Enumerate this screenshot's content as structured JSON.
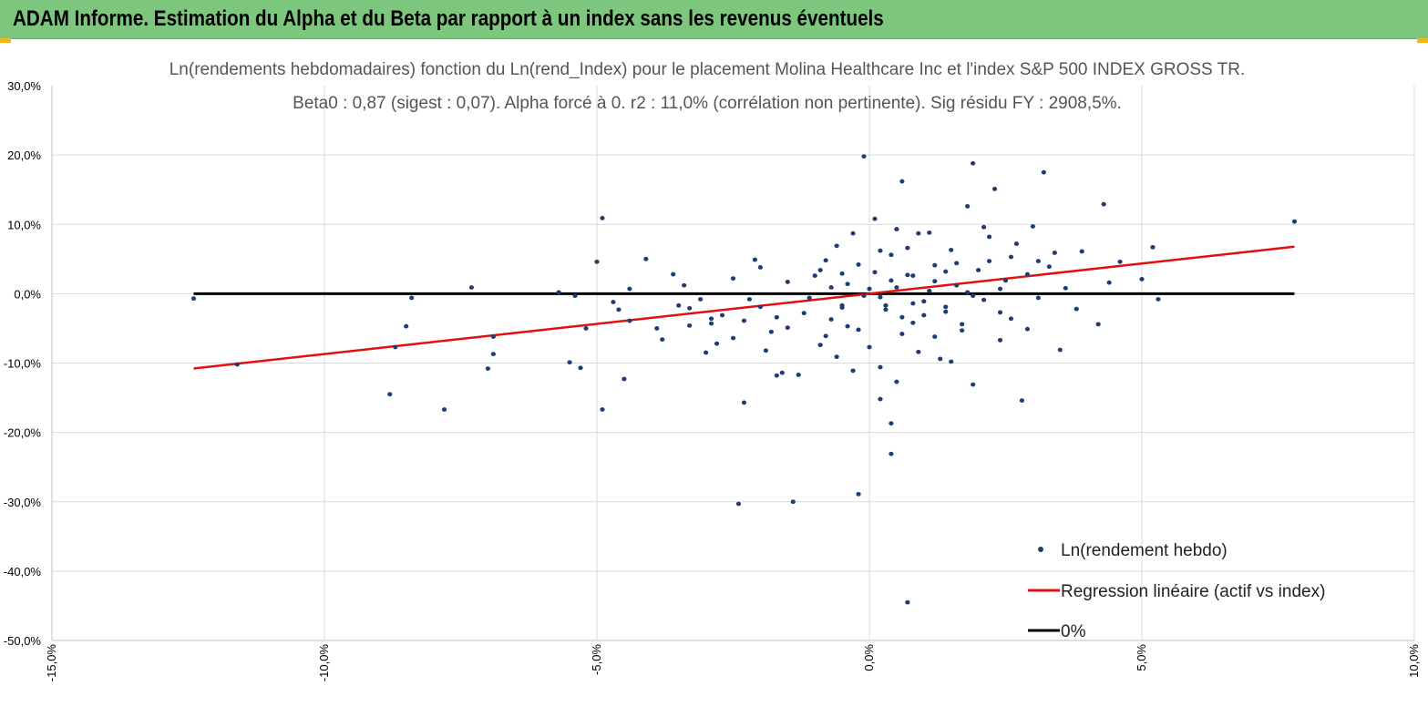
{
  "banner": {
    "title": "ADAM Informe. Estimation du Alpha et du Beta par rapport à un index sans les revenus éventuels"
  },
  "colors": {
    "banner": "#7dc67e",
    "accent": "#f3b51b",
    "points": "#1f3d73",
    "regression": "#e01010",
    "zero": "#000000"
  },
  "chart_data": {
    "type": "scatter",
    "title_lines": [
      "Ln(rendements hebdomadaires) fonction du Ln(rend_Index) pour le placement Molina Healthcare Inc et l'index S&P 500 INDEX GROSS TR.",
      "Beta0 : 0,87 (sigest : 0,07). Alpha forcé à 0. r2 : 11,0% (corrélation non pertinente). Sig résidu FY : 2908,5%."
    ],
    "xlabel": "",
    "ylabel": "",
    "xlim": [
      -15,
      10
    ],
    "ylim": [
      -50,
      30
    ],
    "x_ticks": [
      "-15,0%",
      "-10,0%",
      "-5,0%",
      "0,0%",
      "5,0%",
      "10,0%"
    ],
    "y_ticks": [
      "30,0%",
      "20,0%",
      "10,0%",
      "0,0%",
      "-10,0%",
      "-20,0%",
      "-30,0%",
      "-40,0%",
      "-50,0%"
    ],
    "grid": true,
    "legend_position": "bottom-right",
    "series": [
      {
        "name": "Ln(rendement hebdo)",
        "kind": "scatter",
        "points": [
          [
            -12.4,
            -0.7
          ],
          [
            -11.6,
            -10.2
          ],
          [
            -8.4,
            -0.6
          ],
          [
            -8.5,
            -4.7
          ],
          [
            -8.8,
            -14.5
          ],
          [
            -8.7,
            -7.7
          ],
          [
            -7.8,
            -16.7
          ],
          [
            -7.3,
            0.9
          ],
          [
            -7.0,
            -10.8
          ],
          [
            -6.9,
            -6.2
          ],
          [
            -6.9,
            -8.7
          ],
          [
            -5.7,
            0.2
          ],
          [
            -5.5,
            -9.9
          ],
          [
            -5.4,
            -0.3
          ],
          [
            -5.3,
            -10.7
          ],
          [
            -5.0,
            4.6
          ],
          [
            -4.9,
            10.9
          ],
          [
            -4.9,
            -16.7
          ],
          [
            -4.7,
            -1.2
          ],
          [
            -4.5,
            -12.3
          ],
          [
            -4.4,
            0.7
          ],
          [
            -4.4,
            -3.9
          ],
          [
            -4.1,
            5.0
          ],
          [
            -3.9,
            -5.0
          ],
          [
            -3.8,
            -6.6
          ],
          [
            -3.6,
            2.8
          ],
          [
            -3.5,
            -1.7
          ],
          [
            -3.3,
            -4.6
          ],
          [
            -3.1,
            -0.8
          ],
          [
            -3.0,
            -8.5
          ],
          [
            -2.9,
            -4.3
          ],
          [
            -2.8,
            -7.2
          ],
          [
            -2.7,
            -3.1
          ],
          [
            -2.5,
            -6.4
          ],
          [
            -2.5,
            2.2
          ],
          [
            -2.4,
            -30.3
          ],
          [
            -2.3,
            -15.7
          ],
          [
            -2.2,
            -0.8
          ],
          [
            -2.0,
            3.8
          ],
          [
            -2.0,
            -1.9
          ],
          [
            -1.8,
            -5.5
          ],
          [
            -1.7,
            -3.4
          ],
          [
            -1.6,
            -11.4
          ],
          [
            -1.5,
            1.7
          ],
          [
            -1.3,
            -11.7
          ],
          [
            -1.1,
            -0.6
          ],
          [
            -0.9,
            -7.4
          ],
          [
            -0.8,
            4.8
          ],
          [
            -0.7,
            -3.7
          ],
          [
            -0.6,
            6.9
          ],
          [
            -0.5,
            -2.0
          ],
          [
            -0.4,
            1.4
          ],
          [
            -0.3,
            -11.1
          ],
          [
            -0.2,
            -5.2
          ],
          [
            -0.1,
            -0.3
          ],
          [
            0.0,
            -7.7
          ],
          [
            0.1,
            3.1
          ],
          [
            0.2,
            -10.6
          ],
          [
            0.3,
            -2.3
          ],
          [
            0.4,
            5.6
          ],
          [
            0.5,
            0.9
          ],
          [
            0.6,
            -5.8
          ],
          [
            0.7,
            2.7
          ],
          [
            0.8,
            -1.4
          ],
          [
            0.9,
            8.7
          ],
          [
            1.0,
            -3.1
          ],
          [
            1.1,
            0.4
          ],
          [
            1.2,
            4.1
          ],
          [
            1.3,
            -9.4
          ],
          [
            1.4,
            -1.9
          ],
          [
            1.5,
            6.3
          ],
          [
            1.6,
            1.2
          ],
          [
            1.7,
            -4.4
          ],
          [
            1.8,
            12.6
          ],
          [
            1.9,
            -13.1
          ],
          [
            2.0,
            3.4
          ],
          [
            2.1,
            -0.9
          ],
          [
            2.2,
            8.2
          ],
          [
            2.3,
            15.1
          ],
          [
            2.4,
            -2.7
          ],
          [
            2.5,
            1.9
          ],
          [
            2.6,
            5.3
          ],
          [
            2.8,
            -15.4
          ],
          [
            2.9,
            -5.1
          ],
          [
            3.0,
            9.7
          ],
          [
            3.1,
            -0.6
          ],
          [
            3.2,
            17.5
          ],
          [
            3.3,
            3.9
          ],
          [
            3.5,
            -8.1
          ],
          [
            3.6,
            0.8
          ],
          [
            3.9,
            6.1
          ],
          [
            4.2,
            -4.4
          ],
          [
            4.3,
            12.9
          ],
          [
            4.6,
            4.6
          ],
          [
            5.0,
            2.1
          ],
          [
            5.2,
            6.7
          ],
          [
            5.3,
            -0.8
          ],
          [
            7.8,
            10.4
          ],
          [
            -1.4,
            -30.0
          ],
          [
            -0.2,
            -28.9
          ],
          [
            0.7,
            -44.5
          ],
          [
            0.4,
            -18.7
          ],
          [
            0.4,
            -23.1
          ],
          [
            0.2,
            -15.2
          ],
          [
            -0.1,
            19.8
          ],
          [
            0.6,
            16.2
          ],
          [
            1.9,
            18.8
          ],
          [
            -0.5,
            -1.7
          ],
          [
            -0.8,
            -6.1
          ],
          [
            0.0,
            0.7
          ],
          [
            0.2,
            -0.5
          ],
          [
            0.4,
            1.9
          ],
          [
            0.6,
            -3.4
          ],
          [
            0.8,
            2.6
          ],
          [
            1.0,
            -1.1
          ],
          [
            1.2,
            1.8
          ],
          [
            1.4,
            -2.6
          ],
          [
            1.6,
            4.4
          ],
          [
            -1.0,
            2.6
          ],
          [
            -1.2,
            -2.8
          ],
          [
            -1.9,
            -8.2
          ],
          [
            -2.3,
            -3.9
          ],
          [
            -3.4,
            1.2
          ],
          [
            -0.3,
            8.7
          ],
          [
            0.1,
            10.8
          ],
          [
            0.5,
            9.3
          ],
          [
            1.1,
            8.8
          ],
          [
            2.1,
            9.6
          ],
          [
            2.7,
            7.2
          ],
          [
            3.4,
            5.9
          ],
          [
            2.4,
            -6.7
          ],
          [
            1.7,
            -5.3
          ],
          [
            0.9,
            -8.4
          ],
          [
            -0.6,
            -9.1
          ],
          [
            -1.7,
            -11.8
          ],
          [
            -2.9,
            -3.6
          ],
          [
            -4.6,
            -2.3
          ],
          [
            -5.2,
            -5.0
          ],
          [
            3.8,
            -2.2
          ],
          [
            4.4,
            1.6
          ],
          [
            2.9,
            2.8
          ],
          [
            1.4,
            3.2
          ],
          [
            -0.7,
            0.9
          ],
          [
            0.3,
            -1.7
          ],
          [
            1.8,
            0.2
          ],
          [
            2.2,
            4.7
          ],
          [
            -1.5,
            -4.9
          ],
          [
            0.7,
            6.6
          ],
          [
            1.2,
            -6.2
          ],
          [
            0.5,
            -12.7
          ],
          [
            -0.4,
            -4.7
          ],
          [
            1.5,
            -9.8
          ],
          [
            2.6,
            -3.6
          ],
          [
            3.1,
            4.7
          ],
          [
            -0.9,
            3.4
          ],
          [
            -2.1,
            4.9
          ],
          [
            -3.3,
            -2.1
          ],
          [
            -0.2,
            4.2
          ],
          [
            0.8,
            -4.2
          ],
          [
            1.9,
            -0.3
          ],
          [
            2.4,
            0.7
          ],
          [
            -0.5,
            2.9
          ],
          [
            0.2,
            6.2
          ]
        ]
      },
      {
        "name": "Regression linéaire (actif vs index)",
        "kind": "line",
        "slope": 0.87,
        "intercept": 0,
        "x_range": [
          -12.4,
          7.8
        ]
      },
      {
        "name": "0%",
        "kind": "line",
        "slope": 0,
        "intercept": 0,
        "x_range": [
          -12.4,
          7.8
        ]
      }
    ]
  }
}
